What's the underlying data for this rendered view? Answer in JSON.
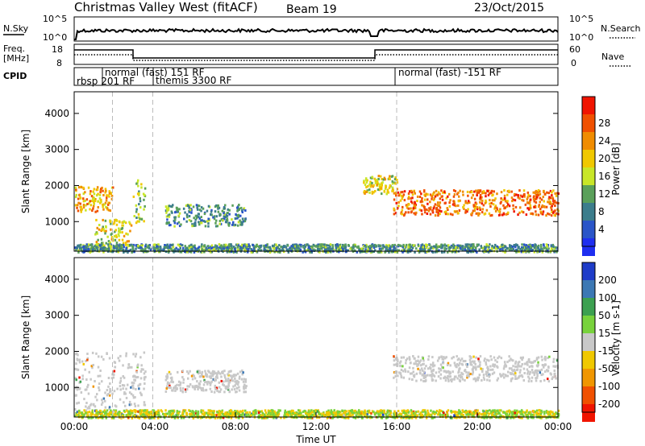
{
  "header": {
    "title": "Christmas Valley West (fitACF)",
    "beam": "Beam 19",
    "date": "23/Oct/2015"
  },
  "noise_panel": {
    "left_label": "N.Sky",
    "right_label": "N.Search",
    "left_ticks": [
      "10^5",
      "10^0"
    ],
    "right_ticks": [
      "10^5",
      "10^0"
    ]
  },
  "freq_panel": {
    "left_label_1": "Freq.",
    "left_label_2": "[MHz]",
    "right_label": "Nave",
    "left_ticks": [
      "18",
      "8"
    ],
    "right_ticks": [
      "60",
      "0"
    ]
  },
  "cpid_panel": {
    "label": "CPID",
    "modes": [
      {
        "text": "rbsp 201 RF"
      },
      {
        "text": "normal (fast) 151 RF"
      },
      {
        "text": "themis 3300 RF"
      },
      {
        "text": "normal (fast) -151 RF"
      }
    ]
  },
  "chart_data": [
    {
      "type": "heatmap",
      "title": "Power",
      "ylabel": "Slant Range [km]",
      "ylim": [
        180,
        4600
      ],
      "yticks": [
        "1000",
        "2000",
        "3000",
        "4000"
      ],
      "colorbar": {
        "label": "Power [dB]",
        "ticks": [
          "4",
          "8",
          "12",
          "16",
          "20",
          "24",
          "28"
        ],
        "colors": [
          "#1e2ef0",
          "#2a55c8",
          "#3c7d8c",
          "#5aa05a",
          "#c8e628",
          "#f0c800",
          "#f08c00",
          "#f05000",
          "#f01400"
        ]
      },
      "regions": [
        {
          "x": [
            0.0,
            1.9
          ],
          "y": [
            1300,
            2000
          ],
          "level": 24
        },
        {
          "x": [
            1.0,
            2.8
          ],
          "y": [
            300,
            1100
          ],
          "level": 20
        },
        {
          "x": [
            2.9,
            3.5
          ],
          "y": [
            1000,
            2300
          ],
          "level": 16
        },
        {
          "x": [
            4.5,
            8.5
          ],
          "y": [
            900,
            1500
          ],
          "level": 12
        },
        {
          "x": [
            14.3,
            16.0
          ],
          "y": [
            1800,
            2300
          ],
          "level": 20
        },
        {
          "x": [
            15.8,
            24.0
          ],
          "y": [
            1200,
            1900
          ],
          "level": 28
        },
        {
          "x": [
            0.0,
            24.0
          ],
          "y": [
            180,
            400
          ],
          "level": 12
        }
      ]
    },
    {
      "type": "heatmap",
      "title": "Velocity",
      "ylabel": "Slant Range [km]",
      "ylim": [
        180,
        4600
      ],
      "yticks": [
        "1000",
        "2000",
        "3000",
        "4000"
      ],
      "xlabel": "Time UT",
      "xticks": [
        "00:00",
        "04:00",
        "08:00",
        "12:00",
        "16:00",
        "20:00",
        "00:00"
      ],
      "colorbar": {
        "label": "Velocity [m s-1]",
        "ticks": [
          "200",
          "100",
          "50",
          "15",
          "-15",
          "-50",
          "-100",
          "-200"
        ],
        "colors": [
          "#1e3cc8",
          "#3c78b4",
          "#3ca050",
          "#78d23c",
          "#c8c8c8",
          "#f0c800",
          "#f09600",
          "#f05000",
          "#f01400"
        ]
      },
      "regions": [
        {
          "x": [
            0.0,
            3.5
          ],
          "y": [
            300,
            2000
          ],
          "level": 0
        },
        {
          "x": [
            4.5,
            8.5
          ],
          "y": [
            900,
            1500
          ],
          "level": 0
        },
        {
          "x": [
            15.8,
            24.0
          ],
          "y": [
            1200,
            1900
          ],
          "level": 0
        },
        {
          "x": [
            0.0,
            24.0
          ],
          "y": [
            180,
            400
          ],
          "level": 30
        }
      ]
    }
  ],
  "vlines_hours": [
    1.9,
    3.9,
    16.0
  ]
}
